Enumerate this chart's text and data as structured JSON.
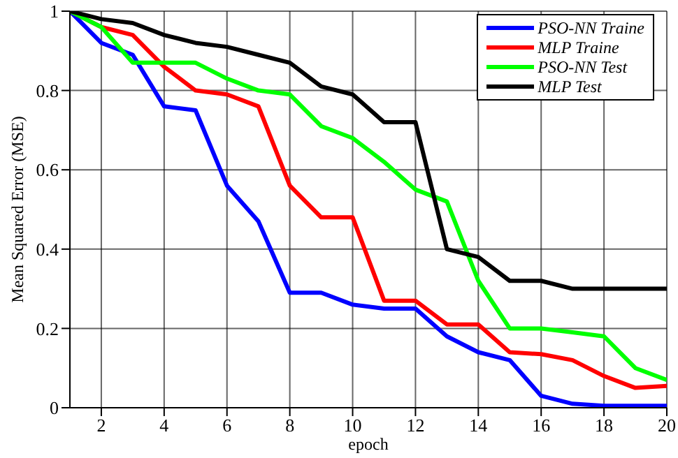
{
  "chart_data": {
    "type": "line",
    "xlabel": "epoch",
    "ylabel": "Mean Squared Error (MSE)",
    "x": [
      1,
      2,
      3,
      4,
      5,
      6,
      7,
      8,
      9,
      10,
      11,
      12,
      13,
      14,
      15,
      16,
      17,
      18,
      19,
      20
    ],
    "xlim": [
      1,
      20
    ],
    "xticks": [
      2,
      4,
      6,
      8,
      10,
      12,
      14,
      16,
      18,
      20
    ],
    "ylim": [
      0,
      1
    ],
    "yticks": [
      0,
      0.2,
      0.4,
      0.6,
      0.8,
      1
    ],
    "grid": true,
    "legend": "top right",
    "marker": "none",
    "line_style": "solid",
    "series": [
      {
        "name": "PSO-NN Traine",
        "color": "#0000ff",
        "values": [
          1,
          0.92,
          0.89,
          0.76,
          0.75,
          0.56,
          0.47,
          0.29,
          0.29,
          0.26,
          0.25,
          0.25,
          0.18,
          0.14,
          0.12,
          0.03,
          0.01,
          0.005,
          0.005,
          0.005
        ]
      },
      {
        "name": "MLP Traine",
        "color": "#ff0000",
        "values": [
          1,
          0.96,
          0.94,
          0.86,
          0.8,
          0.79,
          0.76,
          0.56,
          0.48,
          0.48,
          0.27,
          0.27,
          0.21,
          0.21,
          0.14,
          0.135,
          0.12,
          0.08,
          0.05,
          0.055
        ]
      },
      {
        "name": "PSO-NN Test",
        "color": "#00ff00",
        "values": [
          1,
          0.96,
          0.87,
          0.87,
          0.87,
          0.83,
          0.8,
          0.79,
          0.71,
          0.68,
          0.62,
          0.55,
          0.52,
          0.32,
          0.2,
          0.2,
          0.19,
          0.18,
          0.1,
          0.07
        ]
      },
      {
        "name": "MLP Test",
        "color": "#000000",
        "values": [
          1,
          0.98,
          0.97,
          0.94,
          0.92,
          0.91,
          0.89,
          0.87,
          0.81,
          0.79,
          0.72,
          0.72,
          0.4,
          0.38,
          0.32,
          0.32,
          0.3,
          0.3,
          0.3,
          0.3
        ]
      }
    ]
  }
}
